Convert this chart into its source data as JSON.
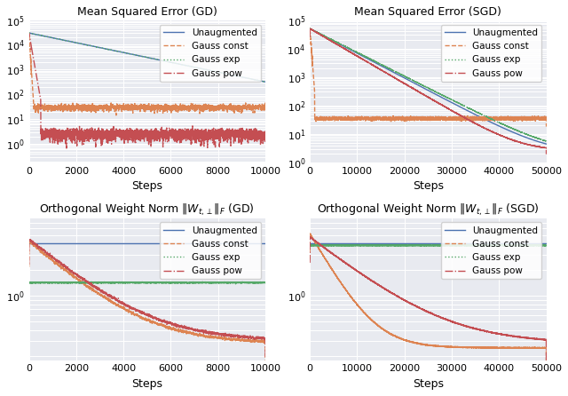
{
  "titles": [
    "Mean Squared Error (GD)",
    "Mean Squared Error (SGD)",
    "Orthogonal Weight Norm $\\|W_{t,\\perp}\\|_F$ (GD)",
    "Orthogonal Weight Norm $\\|W_{t,\\perp}\\|_F$ (SGD)"
  ],
  "xlabel": "Steps",
  "legend_labels": [
    "Unaugmented",
    "Gauss const",
    "Gauss exp",
    "Gauss pow"
  ],
  "colors": [
    "#4c72b0",
    "#dd8452",
    "#55a868",
    "#c44e52"
  ],
  "linestyles": [
    "-",
    "--",
    ":",
    "-."
  ],
  "gd_steps": 10000,
  "sgd_steps": 50000,
  "background_color": "#e8eaf0",
  "fig_bg": "#ffffff",
  "title_fontsize": 9,
  "label_fontsize": 9,
  "legend_fontsize": 7.5,
  "tick_fontsize": 8,
  "linewidth": 1.0
}
